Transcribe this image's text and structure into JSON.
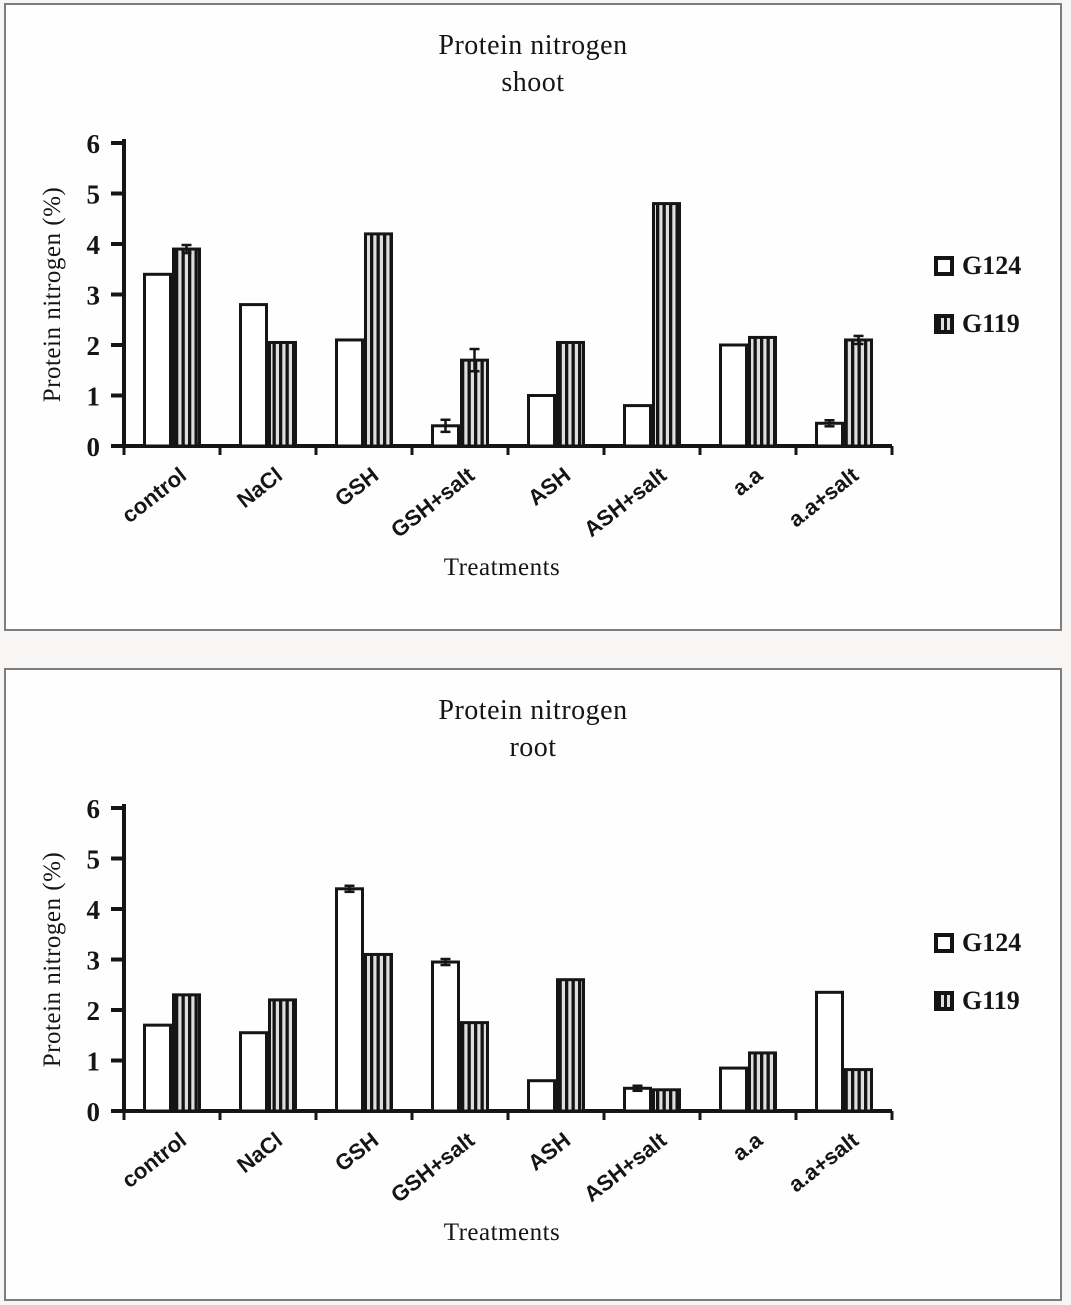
{
  "window": {
    "background": "#f7f6f4",
    "panel_background": "#fefefe",
    "panel_border": "#7d7d7d"
  },
  "colors": {
    "ink": "#151515",
    "bar_outline": "#141414",
    "g124_fill": "#ffffff",
    "g119_stripe_dark": "#141414",
    "g119_stripe_light": "#dedede"
  },
  "chart_data": [
    {
      "type": "bar",
      "title_line1": "Protein nitrogen",
      "title_line2": "shoot",
      "xlabel": "Treatments",
      "ylabel": "Protein nitrogen (%)",
      "ylim": [
        0,
        6
      ],
      "yticks": [
        0,
        1,
        2,
        3,
        4,
        5,
        6
      ],
      "grid": false,
      "legend_position": "right",
      "categories": [
        "control",
        "NaCl",
        "GSH",
        "GSH+salt",
        "ASH",
        "ASH+salt",
        "a.a",
        "a.a+salt"
      ],
      "series": [
        {
          "name": "G124",
          "pattern": "solid-white",
          "values": [
            3.4,
            2.8,
            2.1,
            0.4,
            1.0,
            0.8,
            2.0,
            0.45
          ],
          "errors": [
            0,
            0,
            0,
            0.12,
            0,
            0,
            0,
            0.06
          ]
        },
        {
          "name": "G119",
          "pattern": "vertical-stripes",
          "values": [
            3.9,
            2.05,
            4.2,
            1.7,
            2.05,
            4.8,
            2.15,
            2.1
          ],
          "errors": [
            0.08,
            0,
            0,
            0.22,
            0,
            0,
            0,
            0.08
          ]
        }
      ]
    },
    {
      "type": "bar",
      "title_line1": "Protein nitrogen",
      "title_line2": "root",
      "xlabel": "Treatments",
      "ylabel": "Protein nitrogen (%)",
      "ylim": [
        0,
        6
      ],
      "yticks": [
        0,
        1,
        2,
        3,
        4,
        5,
        6
      ],
      "grid": false,
      "legend_position": "right",
      "categories": [
        "control",
        "NaCl",
        "GSH",
        "GSH+salt",
        "ASH",
        "ASH+salt",
        "a.a",
        "a.a+salt"
      ],
      "series": [
        {
          "name": "G124",
          "pattern": "solid-white",
          "values": [
            1.7,
            1.55,
            4.4,
            2.95,
            0.6,
            0.45,
            0.85,
            2.35
          ],
          "errors": [
            0,
            0,
            0.06,
            0.06,
            0,
            0.05,
            0,
            0
          ]
        },
        {
          "name": "G119",
          "pattern": "vertical-stripes",
          "values": [
            2.3,
            2.2,
            3.1,
            1.75,
            2.6,
            0.42,
            1.15,
            0.82
          ],
          "errors": [
            0,
            0,
            0,
            0,
            0,
            0,
            0,
            0
          ]
        }
      ]
    }
  ]
}
